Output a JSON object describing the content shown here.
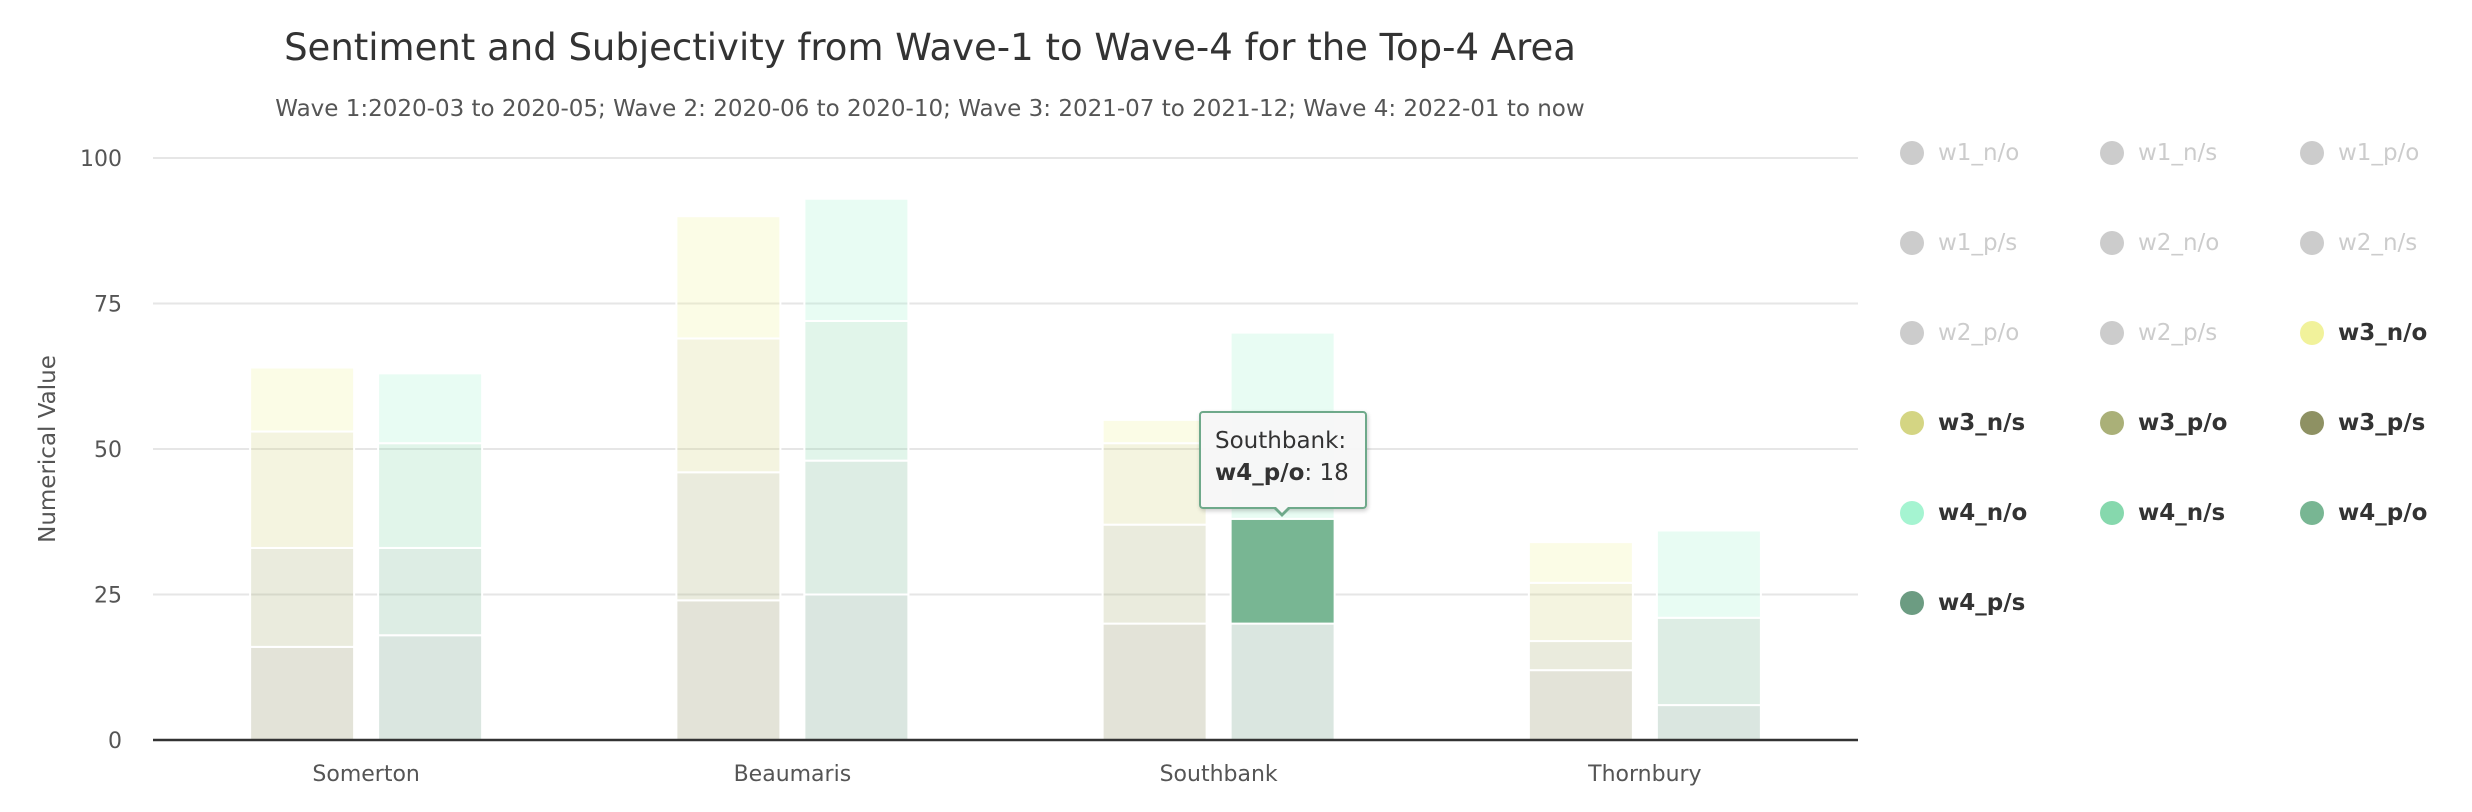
{
  "chart_data": {
    "type": "bar",
    "stacking": "normal",
    "title": "Sentiment and Subjectivity from Wave-1 to Wave-4 for the Top-4 Area",
    "subtitle": "Wave 1:2020-03 to 2020-05; Wave 2: 2020-06 to 2020-10; Wave 3: 2021-07 to 2021-12; Wave 4: 2022-01 to now",
    "xlabel": "",
    "ylabel": "Numerical Value",
    "ylim": [
      0,
      100
    ],
    "yticks": [
      0,
      25,
      50,
      75,
      100
    ],
    "grid": true,
    "legend_position": "right",
    "categories": [
      "Somerton",
      "Beaumaris",
      "Southbank",
      "Thornbury"
    ],
    "stacks": [
      "wave3",
      "wave4"
    ],
    "series": [
      {
        "name": "w1_n/o",
        "color": "#d9d0a0",
        "visible": false,
        "stack": "wave1",
        "values": [
          0,
          0,
          0,
          0
        ]
      },
      {
        "name": "w1_n/s",
        "color": "#c9b98a",
        "visible": false,
        "stack": "wave1",
        "values": [
          0,
          0,
          0,
          0
        ]
      },
      {
        "name": "w1_p/o",
        "color": "#b8a070",
        "visible": false,
        "stack": "wave1",
        "values": [
          0,
          0,
          0,
          0
        ]
      },
      {
        "name": "w1_p/s",
        "color": "#a08050",
        "visible": false,
        "stack": "wave1",
        "values": [
          0,
          0,
          0,
          0
        ]
      },
      {
        "name": "w2_n/o",
        "color": "#a8c8e0",
        "visible": false,
        "stack": "wave2",
        "values": [
          0,
          0,
          0,
          0
        ]
      },
      {
        "name": "w2_n/s",
        "color": "#88a8d0",
        "visible": false,
        "stack": "wave2",
        "values": [
          0,
          0,
          0,
          0
        ]
      },
      {
        "name": "w2_p/o",
        "color": "#6888c0",
        "visible": false,
        "stack": "wave2",
        "values": [
          0,
          0,
          0,
          0
        ]
      },
      {
        "name": "w2_p/s",
        "color": "#4868b0",
        "visible": false,
        "stack": "wave2",
        "values": [
          0,
          0,
          0,
          0
        ]
      },
      {
        "name": "w3_n/o",
        "color": "#f1f29b",
        "visible": true,
        "stack": "wave3",
        "values": [
          11,
          21,
          4,
          7
        ]
      },
      {
        "name": "w3_n/s",
        "color": "#d4d583",
        "visible": true,
        "stack": "wave3",
        "values": [
          20,
          23,
          14,
          10
        ]
      },
      {
        "name": "w3_p/o",
        "color": "#aab078",
        "visible": true,
        "stack": "wave3",
        "values": [
          17,
          22,
          17,
          5
        ]
      },
      {
        "name": "w3_p/s",
        "color": "#8e9163",
        "visible": true,
        "stack": "wave3",
        "values": [
          16,
          24,
          20,
          12
        ]
      },
      {
        "name": "w4_n/o",
        "color": "#a5f4d1",
        "visible": true,
        "stack": "wave4",
        "values": [
          12,
          21,
          32,
          15
        ]
      },
      {
        "name": "w4_n/s",
        "color": "#86d8ad",
        "visible": true,
        "stack": "wave4",
        "values": [
          18,
          24,
          0,
          0
        ]
      },
      {
        "name": "w4_p/o",
        "color": "#78b693",
        "visible": true,
        "stack": "wave4",
        "values": [
          15,
          23,
          18,
          15
        ]
      },
      {
        "name": "w4_p/s",
        "color": "#6c9c82",
        "visible": true,
        "stack": "wave4",
        "values": [
          18,
          25,
          20,
          6
        ]
      }
    ],
    "hover": {
      "category": "Southbank",
      "series": "w4_p/o"
    }
  },
  "tooltip": {
    "category_label": "Southbank:",
    "series_label": "w4_p/o",
    "value_text": ": 18"
  }
}
